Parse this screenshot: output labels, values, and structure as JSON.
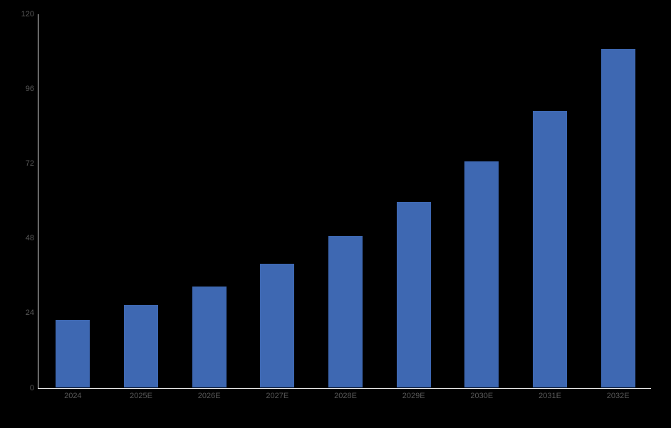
{
  "chart_data": {
    "type": "bar",
    "title": "",
    "xlabel": "",
    "ylabel": "",
    "categories": [
      "2024",
      "2025E",
      "2026E",
      "2027E",
      "2028E",
      "2029E",
      "2030E",
      "2031E",
      "2032E"
    ],
    "values": [
      21.9,
      26.7,
      32.5,
      39.9,
      48.8,
      59.7,
      72.7,
      89.0,
      108.8
    ],
    "ylim": [
      0,
      120
    ],
    "yticks": [
      0,
      24,
      48,
      72,
      96,
      120
    ],
    "grid": false,
    "legend": "none",
    "colors": {
      "background": "#000000",
      "bar_fill": "#3e68b2",
      "axis_line": "#e8e8e8",
      "tick_label": "#595959"
    }
  }
}
